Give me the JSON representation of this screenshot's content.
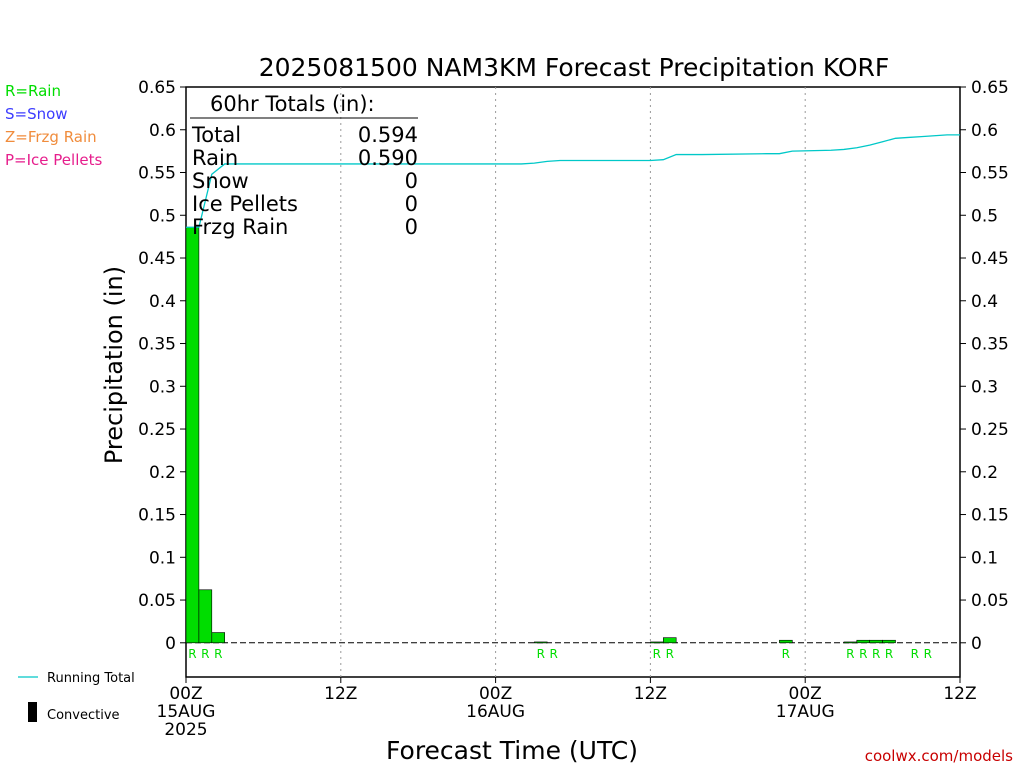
{
  "chart_data": {
    "type": "bar",
    "title": "2025081500 NAM3KM Forecast Precipitation KORF",
    "xlabel": "Forecast Time (UTC)",
    "ylabel": "Precipitation (in)",
    "ylim": [
      -0.04,
      0.65
    ],
    "xlim": [
      0,
      60
    ],
    "yticks": [
      0,
      0.05,
      0.1,
      0.15,
      0.2,
      0.25,
      0.3,
      0.35,
      0.4,
      0.45,
      0.5,
      0.55,
      0.6,
      0.65
    ],
    "ytick_labels": [
      "0",
      "0.05",
      "0.1",
      "0.15",
      "0.2",
      "0.25",
      "0.3",
      "0.35",
      "0.4",
      "0.45",
      "0.5",
      "0.55",
      "0.6",
      "0.65"
    ],
    "xticks": [
      {
        "hour": 0,
        "lines": [
          "00Z",
          "15AUG",
          "2025"
        ]
      },
      {
        "hour": 12,
        "lines": [
          "12Z"
        ]
      },
      {
        "hour": 24,
        "lines": [
          "00Z",
          "16AUG"
        ]
      },
      {
        "hour": 36,
        "lines": [
          "12Z"
        ]
      },
      {
        "hour": 48,
        "lines": [
          "00Z",
          "17AUG"
        ]
      },
      {
        "hour": 60,
        "lines": [
          "12Z"
        ]
      }
    ],
    "grid": "vertical dotted at 12-hour ticks",
    "series": [
      {
        "name": "Rain",
        "color": "#00dd00",
        "hours": [
          1,
          2,
          3,
          28,
          29,
          37,
          38,
          47,
          52,
          53,
          54,
          55,
          57,
          58
        ],
        "values": [
          0.486,
          0.062,
          0.012,
          0.001,
          0.0,
          0.001,
          0.006,
          0.003,
          0.001,
          0.003,
          0.003,
          0.003,
          0.0,
          0.0
        ],
        "ptype_labels": [
          "R",
          "R",
          "R",
          "R",
          "R",
          "R",
          "R",
          "R",
          "R",
          "R",
          "R",
          "R",
          "R",
          "R"
        ]
      },
      {
        "name": "Running Total",
        "color": "#00c8c8",
        "hours": [
          0,
          1,
          2,
          3,
          5,
          10,
          20,
          26,
          27,
          28,
          29,
          30,
          36,
          37,
          38,
          40,
          45,
          46,
          47,
          50,
          51,
          52,
          53,
          54,
          55,
          56,
          57,
          58,
          59,
          60
        ],
        "values": [
          0.486,
          0.486,
          0.548,
          0.56,
          0.56,
          0.56,
          0.56,
          0.56,
          0.561,
          0.563,
          0.564,
          0.564,
          0.564,
          0.565,
          0.571,
          0.571,
          0.572,
          0.572,
          0.575,
          0.576,
          0.577,
          0.579,
          0.582,
          0.586,
          0.59,
          0.591,
          0.592,
          0.593,
          0.594,
          0.594
        ]
      }
    ]
  },
  "legend": {
    "ptypes": [
      {
        "label": "R=Rain",
        "color": "#00dd00"
      },
      {
        "label": "S=Snow",
        "color": "#3c3cff"
      },
      {
        "label": "Z=Frzg Rain",
        "color": "#f08c3c"
      },
      {
        "label": "P=Ice Pellets",
        "color": "#e61e8c"
      }
    ],
    "running_total_label": "Running Total",
    "convective_label": "Convective"
  },
  "totals": {
    "header": "60hr Totals (in):",
    "rows": [
      {
        "label": "Total",
        "value": "0.594"
      },
      {
        "label": "Rain",
        "value": "0.590"
      },
      {
        "label": "Snow",
        "value": "0"
      },
      {
        "label": "Ice Pellets",
        "value": "0"
      },
      {
        "label": "Frzg Rain",
        "value": "0"
      }
    ]
  },
  "credit": "coolwx.com/models"
}
